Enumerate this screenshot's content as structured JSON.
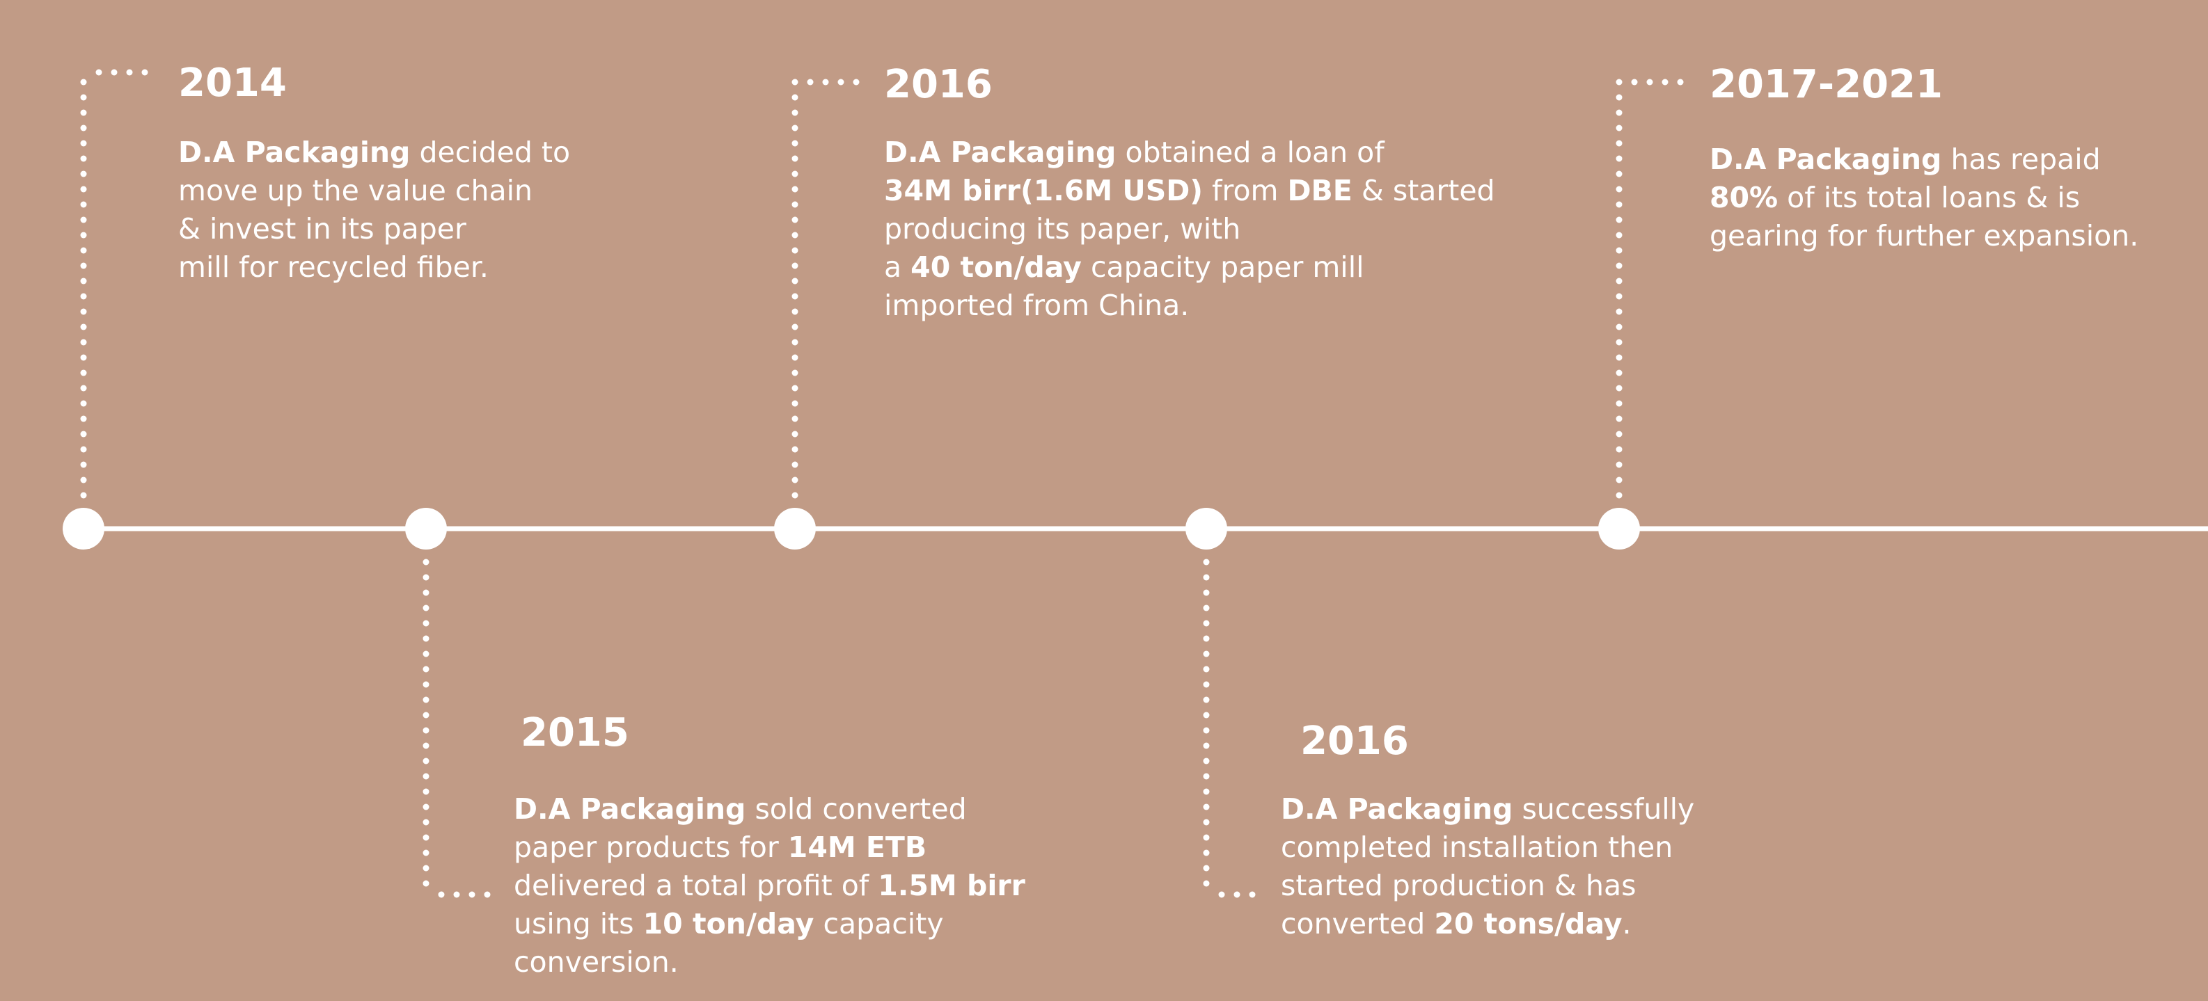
{
  "colors": {
    "background": "#c19b86",
    "foreground": "#ffffff"
  },
  "milestones": [
    {
      "year": "2014",
      "lines": [
        [
          {
            "t": "D.A Packaging",
            "b": true
          },
          {
            "t": " decided to"
          }
        ],
        [
          {
            "t": "move up the value chain"
          }
        ],
        [
          {
            "t": "& invest in its paper"
          }
        ],
        [
          {
            "t": "mill for recycled fiber."
          }
        ]
      ]
    },
    {
      "year": "2015",
      "lines": [
        [
          {
            "t": "D.A Packaging",
            "b": true
          },
          {
            "t": " sold converted"
          }
        ],
        [
          {
            "t": "paper products for "
          },
          {
            "t": "14M ETB",
            "b": true
          }
        ],
        [
          {
            "t": "delivered a  total profit of "
          },
          {
            "t": "1.5M birr",
            "b": true
          }
        ],
        [
          {
            "t": "using its "
          },
          {
            "t": "10 ton/day",
            "b": true
          },
          {
            "t": " capacity"
          }
        ],
        [
          {
            "t": "conversion."
          }
        ]
      ]
    },
    {
      "year": "2016",
      "lines": [
        [
          {
            "t": "D.A Packaging",
            "b": true
          },
          {
            "t": " obtained a loan of"
          }
        ],
        [
          {
            "t": "34M birr(1.6M USD)",
            "b": true
          },
          {
            "t": " from "
          },
          {
            "t": "DBE",
            "b": true
          },
          {
            "t": " & started"
          }
        ],
        [
          {
            "t": "producing its paper, with"
          }
        ],
        [
          {
            "t": "a "
          },
          {
            "t": "40 ton/day",
            "b": true
          },
          {
            "t": " capacity paper mill"
          }
        ],
        [
          {
            "t": "imported from China."
          }
        ]
      ]
    },
    {
      "year": "2016",
      "lines": [
        [
          {
            "t": "D.A Packaging",
            "b": true
          },
          {
            "t": " successfully"
          }
        ],
        [
          {
            "t": "completed installation then"
          }
        ],
        [
          {
            "t": "started production & has"
          }
        ],
        [
          {
            "t": "converted "
          },
          {
            "t": "20 tons/day",
            "b": true
          },
          {
            "t": "."
          }
        ]
      ]
    },
    {
      "year": "2017-2021",
      "lines": [
        [
          {
            "t": "D.A Packaging",
            "b": true
          },
          {
            "t": " has repaid"
          }
        ],
        [
          {
            "t": "80%",
            "b": true
          },
          {
            "t": " of its total loans & is"
          }
        ],
        [
          {
            "t": "gearing for further expansion."
          }
        ]
      ]
    }
  ]
}
